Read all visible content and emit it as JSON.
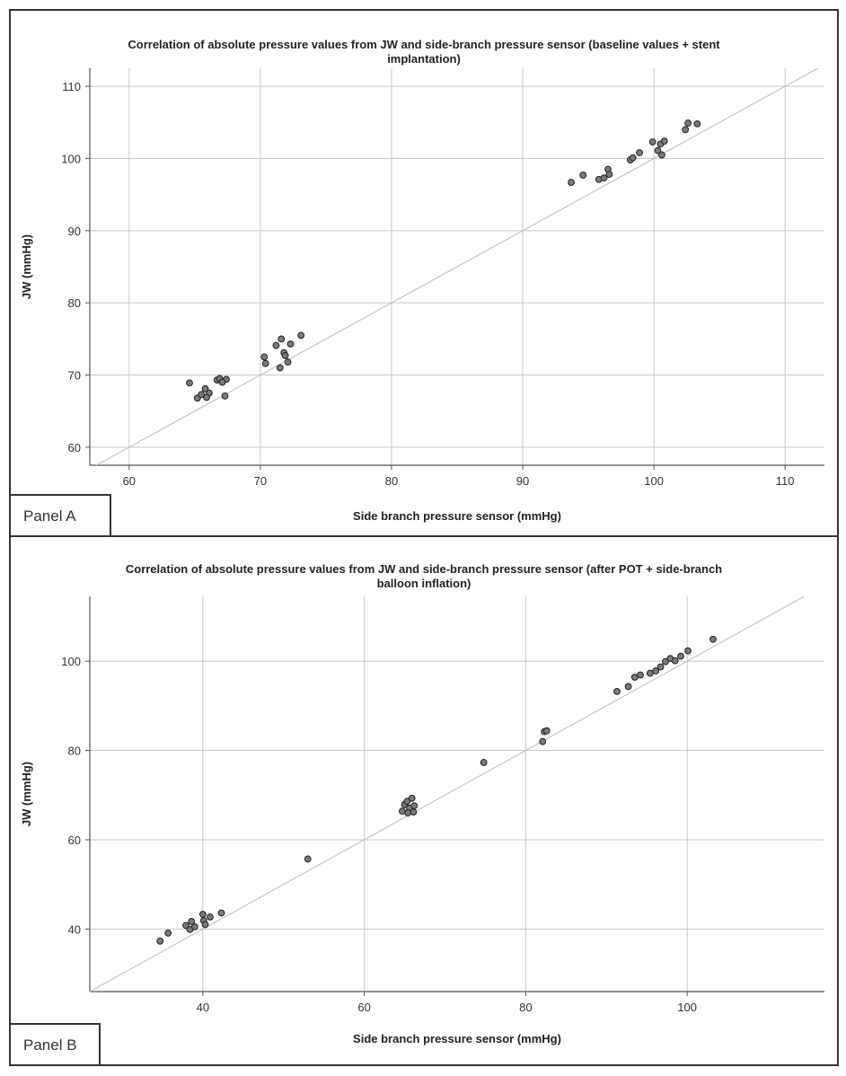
{
  "panels": [
    {
      "id": "A",
      "panel_label": "Panel A",
      "chart_data": {
        "type": "scatter",
        "title_lines": [
          "Correlation of absolute pressure values from JW and side-branch pressure sensor (baseline values + stent",
          "implantation)"
        ],
        "xlabel": "Side branch pressure sensor (mmHg)",
        "ylabel": "JW (mmHg)",
        "xlim": [
          57,
          113
        ],
        "ylim": [
          57.5,
          112.5
        ],
        "xticks": [
          60,
          70,
          80,
          90,
          100,
          110
        ],
        "yticks": [
          60,
          70,
          80,
          90,
          100,
          110
        ],
        "grid": true,
        "reference_line": "identity",
        "x": [
          64.6,
          65.2,
          65.8,
          65.5,
          66.1,
          65.9,
          66.7,
          66.9,
          67.4,
          67.1,
          67.3,
          70.3,
          70.4,
          71.2,
          71.6,
          71.8,
          71.5,
          71.9,
          72.3,
          72.1,
          73.1,
          93.7,
          94.6,
          95.8,
          96.2,
          96.5,
          96.6,
          98.2,
          98.4,
          98.9,
          99.9,
          100.3,
          100.5,
          100.6,
          100.8,
          102.4,
          102.6,
          103.3
        ],
        "y": [
          68.9,
          66.8,
          68.1,
          67.3,
          67.5,
          66.9,
          69.3,
          69.5,
          69.4,
          69.0,
          67.1,
          72.5,
          71.6,
          74.1,
          75.0,
          73.1,
          71.0,
          72.7,
          74.3,
          71.8,
          75.5,
          96.7,
          97.7,
          97.1,
          97.3,
          98.5,
          97.8,
          99.8,
          100.1,
          100.8,
          102.3,
          101.1,
          102.0,
          100.5,
          102.4,
          104.0,
          104.9,
          104.8
        ]
      }
    },
    {
      "id": "B",
      "panel_label": "Panel B",
      "chart_data": {
        "type": "scatter",
        "title_lines": [
          "Correlation of absolute pressure values from JW and side-branch pressure sensor (after POT + side-branch",
          "balloon inflation)"
        ],
        "xlabel": "Side branch pressure sensor (mmHg)",
        "ylabel": "JW (mmHg)",
        "xlim": [
          26,
          117
        ],
        "ylim": [
          26,
          114.5
        ],
        "xticks": [
          40,
          60,
          80,
          100
        ],
        "yticks": [
          40,
          60,
          80,
          100
        ],
        "grid": true,
        "reference_line": "identity",
        "x": [
          34.7,
          35.7,
          37.9,
          38.4,
          38.6,
          39.0,
          40.0,
          40.1,
          40.3,
          40.9,
          42.3,
          53.0,
          64.7,
          65.0,
          65.3,
          65.6,
          65.9,
          66.1,
          65.4,
          66.2,
          74.8,
          82.1,
          82.3,
          82.6,
          91.3,
          92.7,
          93.5,
          94.2,
          95.4,
          96.1,
          96.7,
          97.3,
          97.9,
          98.5,
          99.2,
          100.1,
          103.2
        ],
        "y": [
          37.3,
          39.1,
          40.8,
          39.9,
          41.7,
          40.5,
          43.3,
          41.9,
          41.0,
          42.7,
          43.6,
          55.7,
          66.4,
          67.9,
          68.6,
          67.1,
          69.3,
          66.2,
          66.0,
          67.6,
          77.3,
          82.0,
          84.2,
          84.4,
          93.2,
          94.3,
          96.4,
          96.9,
          97.3,
          97.8,
          98.7,
          99.9,
          100.6,
          100.1,
          101.1,
          102.3,
          104.9
        ]
      }
    }
  ]
}
